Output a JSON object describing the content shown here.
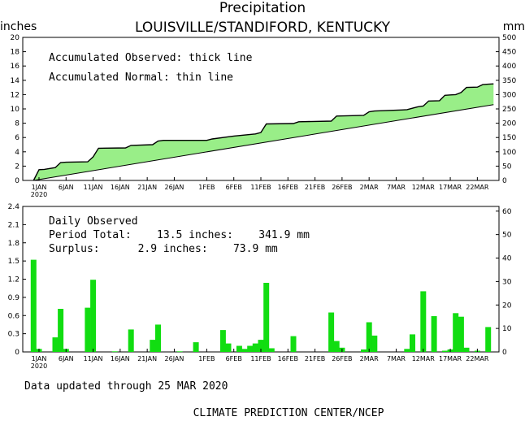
{
  "header": {
    "title": "Precipitation",
    "subtitle": "LOUISVILLE/STANDIFORD, KENTUCKY",
    "left_unit": "inches",
    "right_unit": "mm"
  },
  "accum_panel": {
    "legend_observed": "Accumulated Observed: thick line",
    "legend_normal": "Accumulated Normal: thin line"
  },
  "daily_panel": {
    "label": "Daily Observed",
    "period_total": "Period Total:    13.5 inches:    341.9 mm",
    "surplus": "Surplus:      2.9 inches:    73.9 mm"
  },
  "footer": {
    "updated": "Data updated through 25 MAR 2020",
    "source": "CLIMATE PREDICTION CENTER/NCEP"
  },
  "colors": {
    "observed_fill": "#99ee88",
    "daily_bar": "#11dd11",
    "line": "#000000"
  },
  "x_axis": {
    "ticks": [
      {
        "day": 1,
        "label": "1JAN"
      },
      {
        "day": 6,
        "label": "6JAN"
      },
      {
        "day": 11,
        "label": "11JAN"
      },
      {
        "day": 16,
        "label": "16JAN"
      },
      {
        "day": 21,
        "label": "21JAN"
      },
      {
        "day": 26,
        "label": "26JAN"
      },
      {
        "day": 32,
        "label": "1FEB"
      },
      {
        "day": 37,
        "label": "6FEB"
      },
      {
        "day": 42,
        "label": "11FEB"
      },
      {
        "day": 47,
        "label": "16FEB"
      },
      {
        "day": 52,
        "label": "21FEB"
      },
      {
        "day": 57,
        "label": "26FEB"
      },
      {
        "day": 62,
        "label": "2MAR"
      },
      {
        "day": 67,
        "label": "7MAR"
      },
      {
        "day": 72,
        "label": "12MAR"
      },
      {
        "day": 77,
        "label": "17MAR"
      },
      {
        "day": 82,
        "label": "22MAR"
      }
    ],
    "year_label": "2020"
  },
  "chart_data": [
    {
      "type": "area",
      "xlabel": "",
      "ylabel": "inches",
      "ylabel_right": "mm",
      "xlim": [
        "2019-12-29",
        "2020-03-26"
      ],
      "ylim": [
        0,
        20
      ],
      "ylim_right": [
        0,
        500
      ],
      "yticks": [
        0,
        2,
        4,
        6,
        8,
        10,
        12,
        14,
        16,
        18,
        20
      ],
      "yticks_right": [
        0,
        50,
        100,
        150,
        200,
        250,
        300,
        350,
        400,
        450,
        500
      ],
      "series": [
        {
          "name": "Accumulated Observed",
          "x": [
            "2019-12-31",
            "2020-01-01",
            "2020-01-02",
            "2020-01-04",
            "2020-01-05",
            "2020-01-06",
            "2020-01-10",
            "2020-01-11",
            "2020-01-12",
            "2020-01-17",
            "2020-01-18",
            "2020-01-22",
            "2020-01-23",
            "2020-01-24",
            "2020-02-01",
            "2020-02-02",
            "2020-02-05",
            "2020-02-06",
            "2020-02-10",
            "2020-02-11",
            "2020-02-12",
            "2020-02-17",
            "2020-02-18",
            "2020-02-24",
            "2020-02-25",
            "2020-03-01",
            "2020-03-02",
            "2020-03-03",
            "2020-03-08",
            "2020-03-09",
            "2020-03-11",
            "2020-03-12",
            "2020-03-13",
            "2020-03-15",
            "2020-03-16",
            "2020-03-17",
            "2020-03-18",
            "2020-03-19",
            "2020-03-20",
            "2020-03-22",
            "2020-03-23",
            "2020-03-24",
            "2020-03-25"
          ],
          "values": [
            0.0,
            1.5,
            1.55,
            1.8,
            2.5,
            2.55,
            2.6,
            3.3,
            4.5,
            4.55,
            4.9,
            5.0,
            5.5,
            5.6,
            5.6,
            5.8,
            6.1,
            6.2,
            6.5,
            6.7,
            7.9,
            7.95,
            8.2,
            8.3,
            9.0,
            9.1,
            9.6,
            9.7,
            9.85,
            9.9,
            10.3,
            10.4,
            11.1,
            11.15,
            11.9,
            11.95,
            12.0,
            12.3,
            13.0,
            13.05,
            13.4,
            13.45,
            13.5
          ]
        },
        {
          "name": "Accumulated Normal",
          "x": [
            "2019-12-31",
            "2020-03-25"
          ],
          "values": [
            0.0,
            10.6
          ]
        }
      ]
    },
    {
      "type": "bar",
      "ylabel": "inches",
      "ylabel_right": "mm",
      "xlim": [
        "2019-12-29",
        "2020-03-26"
      ],
      "ylim": [
        0,
        2.4
      ],
      "ylim_right": [
        0,
        62
      ],
      "yticks": [
        "0",
        "0.3",
        "0.6",
        "0.9",
        "1.2",
        "1.5",
        "1.8",
        "2.1",
        "2.4"
      ],
      "yticks_right": [
        0,
        10,
        20,
        30,
        40,
        50,
        60
      ],
      "series": [
        {
          "name": "Daily Observed",
          "x": [
            "2019-12-31",
            "2020-01-01",
            "2020-01-04",
            "2020-01-05",
            "2020-01-06",
            "2020-01-10",
            "2020-01-11",
            "2020-01-15",
            "2020-01-18",
            "2020-01-22",
            "2020-01-23",
            "2020-01-27",
            "2020-01-30",
            "2020-02-04",
            "2020-02-05",
            "2020-02-07",
            "2020-02-08",
            "2020-02-09",
            "2020-02-10",
            "2020-02-11",
            "2020-02-12",
            "2020-02-13",
            "2020-02-17",
            "2020-02-24",
            "2020-02-25",
            "2020-02-26",
            "2020-03-01",
            "2020-03-02",
            "2020-03-03",
            "2020-03-09",
            "2020-03-10",
            "2020-03-12",
            "2020-03-14",
            "2020-03-16",
            "2020-03-17",
            "2020-03-18",
            "2020-03-19",
            "2020-03-20",
            "2020-03-22",
            "2020-03-24"
          ],
          "values": [
            1.52,
            0.05,
            0.24,
            0.71,
            0.05,
            0.73,
            1.19,
            0.01,
            0.37,
            0.2,
            0.45,
            0.01,
            0.16,
            0.36,
            0.14,
            0.1,
            0.05,
            0.1,
            0.14,
            0.2,
            1.14,
            0.06,
            0.26,
            0.65,
            0.18,
            0.07,
            0.04,
            0.49,
            0.27,
            0.05,
            0.29,
            1.0,
            0.59,
            0.02,
            0.04,
            0.64,
            0.58,
            0.07,
            0.02,
            0.41
          ]
        }
      ]
    }
  ]
}
